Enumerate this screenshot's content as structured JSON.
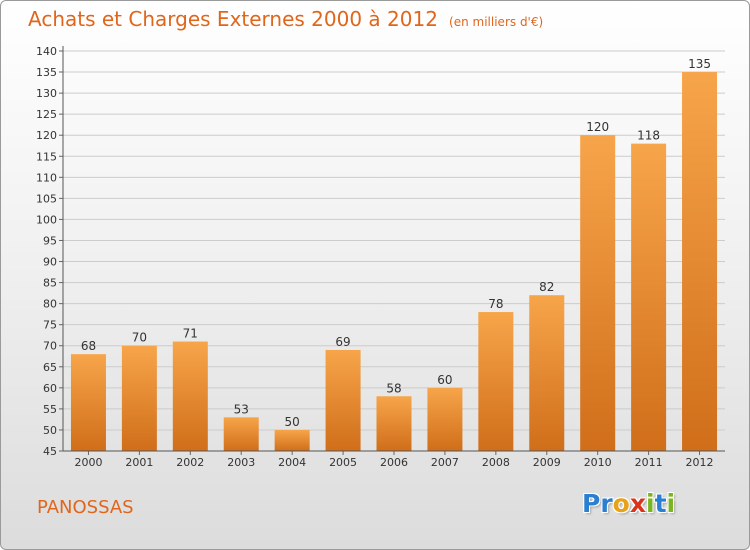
{
  "title": "Achats et Charges Externes 2000 à 2012",
  "subtitle": "(en milliers d'€)",
  "commune": "PANOSSAS",
  "logo": {
    "letters": [
      "P",
      "r",
      "o",
      "x",
      "i",
      "t",
      "i"
    ],
    "colors": [
      "#2a7fd0",
      "#2a7fd0",
      "#e8a21a",
      "#d9341e",
      "#7ab51d",
      "#2a7fd0",
      "#7ab51d"
    ]
  },
  "colors": {
    "bar_light": "#f7a54a",
    "bar_dark": "#d06e1a",
    "accent": "#e0661c",
    "grid": "#cccccc"
  },
  "chart_data": {
    "type": "bar",
    "categories": [
      "2000",
      "2001",
      "2002",
      "2003",
      "2004",
      "2005",
      "2006",
      "2007",
      "2008",
      "2009",
      "2010",
      "2011",
      "2012"
    ],
    "values": [
      68,
      70,
      71,
      53,
      50,
      69,
      58,
      60,
      78,
      82,
      120,
      118,
      135
    ],
    "data_labels": [
      "68",
      "70",
      "71",
      "53",
      "50",
      "69",
      "58",
      "60",
      "78",
      "82",
      "120",
      "118",
      "135"
    ],
    "ylim": [
      45,
      140
    ],
    "ytick_step": 5,
    "grid": true,
    "xlabel": "",
    "ylabel": ""
  }
}
